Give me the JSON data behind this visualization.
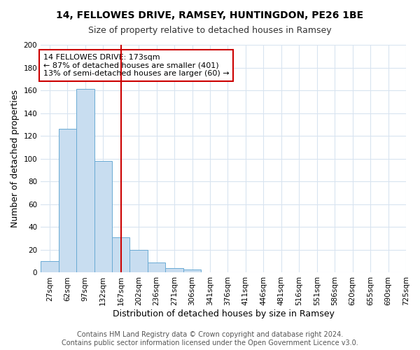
{
  "title": "14, FELLOWES DRIVE, RAMSEY, HUNTINGDON, PE26 1BE",
  "subtitle": "Size of property relative to detached houses in Ramsey",
  "xlabel": "Distribution of detached houses by size in Ramsey",
  "ylabel": "Number of detached properties",
  "bin_labels": [
    "27sqm",
    "62sqm",
    "97sqm",
    "132sqm",
    "167sqm",
    "202sqm",
    "236sqm",
    "271sqm",
    "306sqm",
    "341sqm",
    "376sqm",
    "411sqm",
    "446sqm",
    "481sqm",
    "516sqm",
    "551sqm",
    "586sqm",
    "620sqm",
    "655sqm",
    "690sqm",
    "725sqm"
  ],
  "bar_heights": [
    10,
    126,
    161,
    98,
    31,
    20,
    9,
    4,
    3,
    0,
    0,
    0,
    0,
    0,
    0,
    0,
    0,
    0,
    0,
    0
  ],
  "bar_color": "#c8ddf0",
  "bar_edge_color": "#6aaad4",
  "property_line_x": 4.5,
  "property_line_color": "#cc0000",
  "annotation_text": "14 FELLOWES DRIVE: 173sqm\n← 87% of detached houses are smaller (401)\n13% of semi-detached houses are larger (60) →",
  "annotation_box_color": "#ffffff",
  "annotation_box_edge_color": "#cc0000",
  "ylim": [
    0,
    200
  ],
  "yticks": [
    0,
    20,
    40,
    60,
    80,
    100,
    120,
    140,
    160,
    180,
    200
  ],
  "footer_line1": "Contains HM Land Registry data © Crown copyright and database right 2024.",
  "footer_line2": "Contains public sector information licensed under the Open Government Licence v3.0.",
  "background_color": "#ffffff",
  "plot_background_color": "#ffffff",
  "grid_color": "#d8e4f0",
  "title_fontsize": 10,
  "subtitle_fontsize": 9,
  "axis_label_fontsize": 9,
  "tick_fontsize": 7.5,
  "annotation_fontsize": 8,
  "footer_fontsize": 7
}
